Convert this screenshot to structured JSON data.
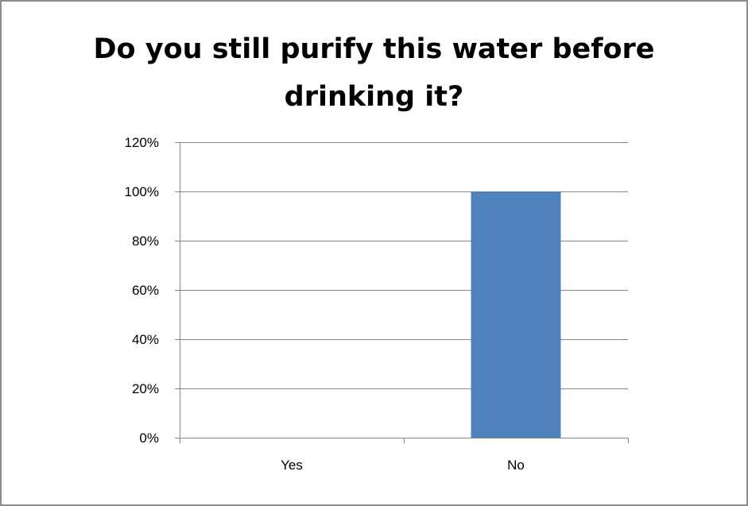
{
  "chart_data": {
    "type": "bar",
    "title": "Do you still purify this water before drinking it?",
    "title_lines": [
      "Do you still purify this water before",
      "drinking it?"
    ],
    "categories": [
      "Yes",
      "No"
    ],
    "values": [
      0,
      100
    ],
    "value_unit": "%",
    "y_ticks": [
      "0%",
      "20%",
      "40%",
      "60%",
      "80%",
      "100%",
      "120%"
    ],
    "ylim": [
      0,
      120
    ],
    "y_tick_step": 20,
    "xlabel": "",
    "ylabel": "",
    "grid": true,
    "legend": false,
    "colors": {
      "bar": "#4f81bd",
      "grid": "#868686",
      "axis": "#868686",
      "frame": "#8c8c8c"
    }
  }
}
